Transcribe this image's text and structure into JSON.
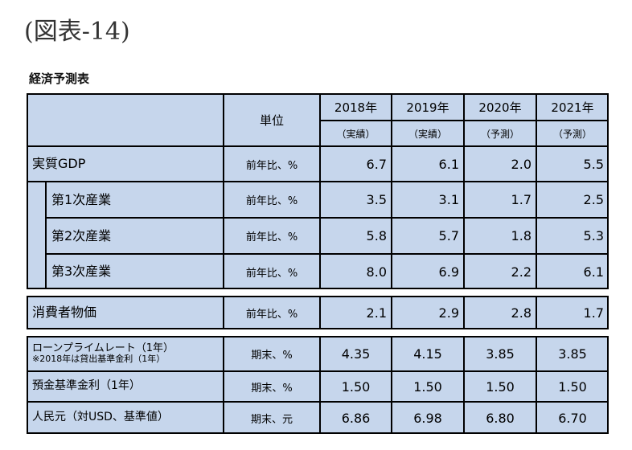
{
  "title": "(図表-14)",
  "subtitle": "経済予測表",
  "table": {
    "unit_header": "単位",
    "years": [
      "2018年",
      "2019年",
      "2020年",
      "2021年"
    ],
    "status": [
      "（実績）",
      "（実績）",
      "（予測）",
      "（予測）"
    ],
    "rows": [
      {
        "label": "実質GDP",
        "unit": "前年比、%",
        "values": [
          "6.7",
          "6.1",
          "2.0",
          "5.5"
        ]
      },
      {
        "label": "第1次産業",
        "unit": "前年比、%",
        "values": [
          "3.5",
          "3.1",
          "1.7",
          "2.5"
        ]
      },
      {
        "label": "第2次産業",
        "unit": "前年比、%",
        "values": [
          "5.8",
          "5.7",
          "1.8",
          "5.3"
        ]
      },
      {
        "label": "第3次産業",
        "unit": "前年比、%",
        "values": [
          "8.0",
          "6.9",
          "2.2",
          "6.1"
        ]
      },
      {
        "label": "消費者物価",
        "unit": "前年比、%",
        "values": [
          "2.1",
          "2.9",
          "2.8",
          "1.7"
        ]
      },
      {
        "label": "ローンプライムレート（1年）",
        "note": "※2018年は貸出基準金利（1年）",
        "unit": "期末、%",
        "values": [
          "4.35",
          "4.15",
          "3.85",
          "3.85"
        ]
      },
      {
        "label": "預金基準金利（1年）",
        "unit": "期末、%",
        "values": [
          "1.50",
          "1.50",
          "1.50",
          "1.50"
        ]
      },
      {
        "label": "人民元（対USD、基準値）",
        "unit": "期末、元",
        "values": [
          "6.86",
          "6.98",
          "6.80",
          "6.70"
        ]
      }
    ]
  }
}
